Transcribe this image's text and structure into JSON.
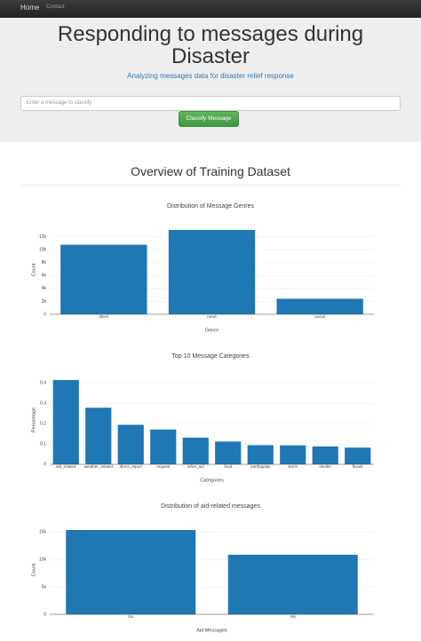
{
  "nav": {
    "brand": "Home",
    "links": [
      "Contact"
    ]
  },
  "header": {
    "title": "Responding to messages during Disaster",
    "subtitle": "Analyzing messages data for disaster relief response"
  },
  "form": {
    "placeholder": "Enter a message to classify",
    "button": "Classify Message"
  },
  "section": {
    "title": "Overview of Training Dataset"
  },
  "chart_data": [
    {
      "type": "bar",
      "title": "Distribution of Message Genres",
      "x_label": "Genre",
      "y_label": "Count",
      "categories": [
        "direct",
        "news",
        "social"
      ],
      "values": [
        10770,
        13050,
        2400
      ],
      "color": "#1f77b4",
      "ylim": [
        0,
        13740
      ],
      "yticks": [
        0,
        {
          "value": 2000,
          "label": "2k"
        },
        {
          "value": 4000,
          "label": "4k"
        },
        {
          "value": 6000,
          "label": "6k"
        },
        {
          "value": 8000,
          "label": "8k"
        },
        {
          "value": 10000,
          "label": "10k"
        },
        {
          "value": 12000,
          "label": "12k"
        }
      ],
      "grid": true
    },
    {
      "type": "bar",
      "title": "Top 10 Message Categories",
      "x_label": "Categories",
      "y_label": "Percentage",
      "categories": [
        "aid_related",
        "weather_related",
        "direct_report",
        "request",
        "other_aid",
        "food",
        "earthquake",
        "storm",
        "shelter",
        "floods"
      ],
      "values": [
        0.414,
        0.278,
        0.194,
        0.171,
        0.131,
        0.112,
        0.094,
        0.093,
        0.088,
        0.082
      ],
      "color": "#1f77b4",
      "ylim": [
        0,
        0.436
      ],
      "yticks": [
        0,
        0.1,
        0.2,
        0.3,
        0.4
      ],
      "grid": true
    },
    {
      "type": "bar",
      "title": "Distribution of aid-related messages",
      "x_label": "Aid Messages",
      "y_label": "Count",
      "categories": [
        "No",
        "Yes"
      ],
      "values": [
        15360,
        10860
      ],
      "color": "#1f77b4",
      "ylim": [
        0,
        16170
      ],
      "yticks": [
        0,
        {
          "value": 5000,
          "label": "5k"
        },
        {
          "value": 10000,
          "label": "10k"
        },
        {
          "value": 15000,
          "label": "15k"
        }
      ],
      "grid": true
    }
  ]
}
